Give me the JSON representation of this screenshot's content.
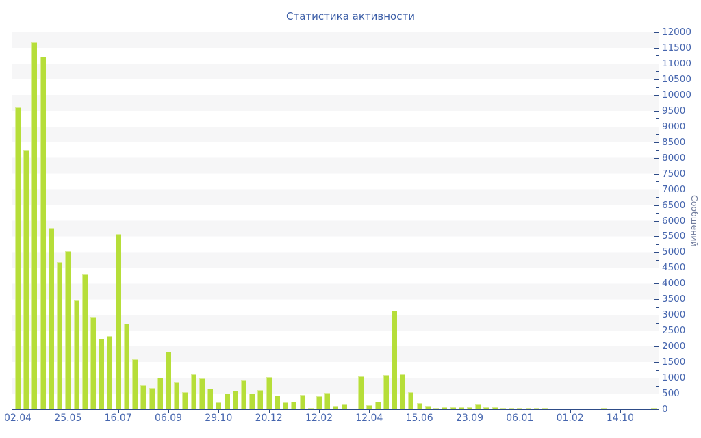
{
  "chart_data": {
    "type": "bar",
    "title": "Статистика активности",
    "ylabel": "Сообщений",
    "xlabel": "",
    "ylim": [
      0,
      12000
    ],
    "ytick_step": 500,
    "yminor_step": 250,
    "grid": "alternating-horizontal-500-bands",
    "legend_position": "none",
    "bar_color": "#b6de39",
    "bar_edge_color": "#d9ec95",
    "title_color": "#3c5ea7",
    "tick_label_color": "#4565ae",
    "axis_color": "#2e4c88",
    "band_color": "#f6f6f7",
    "ylabel_color": "#6f7b9c",
    "categories": [
      "02.04",
      "25.05",
      "16.07",
      "06.09",
      "29.10",
      "20.12",
      "12.02",
      "12.04",
      "15.06",
      "23.09",
      "06.01",
      "01.02",
      "14.10"
    ],
    "label_every_n_bars": 6,
    "values": [
      9600,
      8250,
      11680,
      11210,
      5780,
      4690,
      5040,
      3460,
      4300,
      2930,
      2250,
      2340,
      5580,
      2715,
      1600,
      770,
      680,
      1010,
      1820,
      875,
      545,
      1100,
      985,
      655,
      220,
      505,
      590,
      945,
      505,
      615,
      1015,
      430,
      210,
      240,
      460,
      45,
      415,
      525,
      110,
      155,
      25,
      1050,
      140,
      245,
      1095,
      3130,
      1115,
      545,
      195,
      110,
      50,
      60,
      70,
      60,
      55,
      150,
      60,
      60,
      50,
      45,
      45,
      40,
      40,
      35,
      30,
      30,
      30,
      25,
      30,
      25,
      45,
      25,
      30,
      25,
      20,
      30,
      35
    ]
  }
}
